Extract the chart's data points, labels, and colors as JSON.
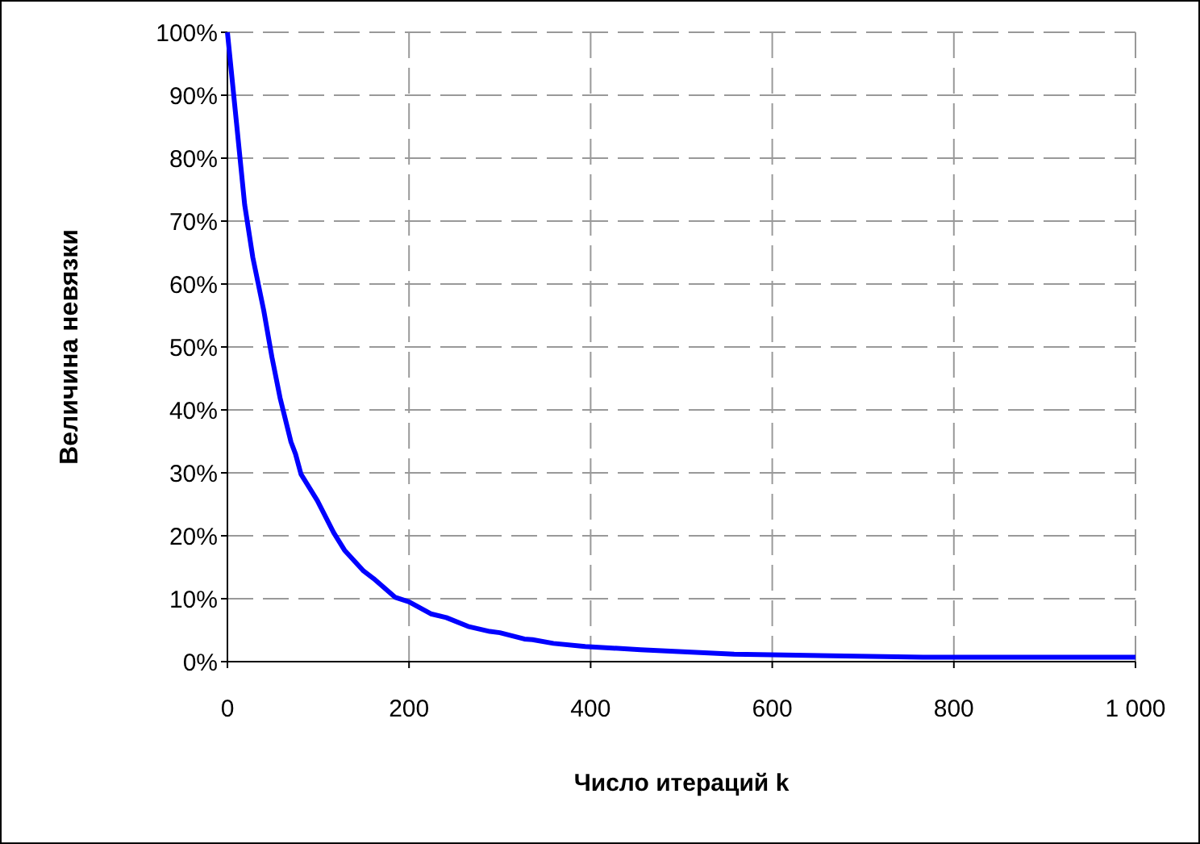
{
  "chart_data": {
    "type": "line",
    "xlabel": "Число итераций k",
    "ylabel": "Величина невязки",
    "x": [
      0,
      10,
      19,
      22,
      28,
      40,
      49,
      58,
      70,
      75,
      81,
      99,
      117,
      129,
      150,
      161,
      185,
      200,
      224,
      241,
      265,
      289,
      300,
      327,
      336,
      359,
      394,
      455,
      558,
      766,
      1000
    ],
    "series": [
      {
        "color": "#0000ff",
        "values": [
          100,
          85.6,
          72.6,
          69.8,
          64.2,
          55.8,
          48.4,
          41.9,
          34.9,
          33,
          29.8,
          25.6,
          20.5,
          17.7,
          14.4,
          13.2,
          10.2,
          9.5,
          7.6,
          7.0,
          5.6,
          4.8,
          4.6,
          3.6,
          3.5,
          2.9,
          2.4,
          1.9,
          1.2,
          0.7,
          0.7
        ]
      }
    ],
    "xlim": [
      0,
      1000
    ],
    "ylim": [
      0,
      100
    ],
    "xticks": [
      0,
      200,
      400,
      600,
      800,
      {
        "value": 1000,
        "label": "1 000"
      }
    ],
    "yticks": [
      {
        "value": 0,
        "label": "0%"
      },
      {
        "value": 10,
        "label": "10%"
      },
      {
        "value": 20,
        "label": "20%"
      },
      {
        "value": 30,
        "label": "30%"
      },
      {
        "value": 40,
        "label": "40%"
      },
      {
        "value": 50,
        "label": "50%"
      },
      {
        "value": 60,
        "label": "60%"
      },
      {
        "value": 70,
        "label": "70%"
      },
      {
        "value": 80,
        "label": "80%"
      },
      {
        "value": 90,
        "label": "90%"
      },
      {
        "value": 100,
        "label": "100%"
      }
    ],
    "grid": true,
    "marker": "none",
    "line_style": "solid"
  }
}
